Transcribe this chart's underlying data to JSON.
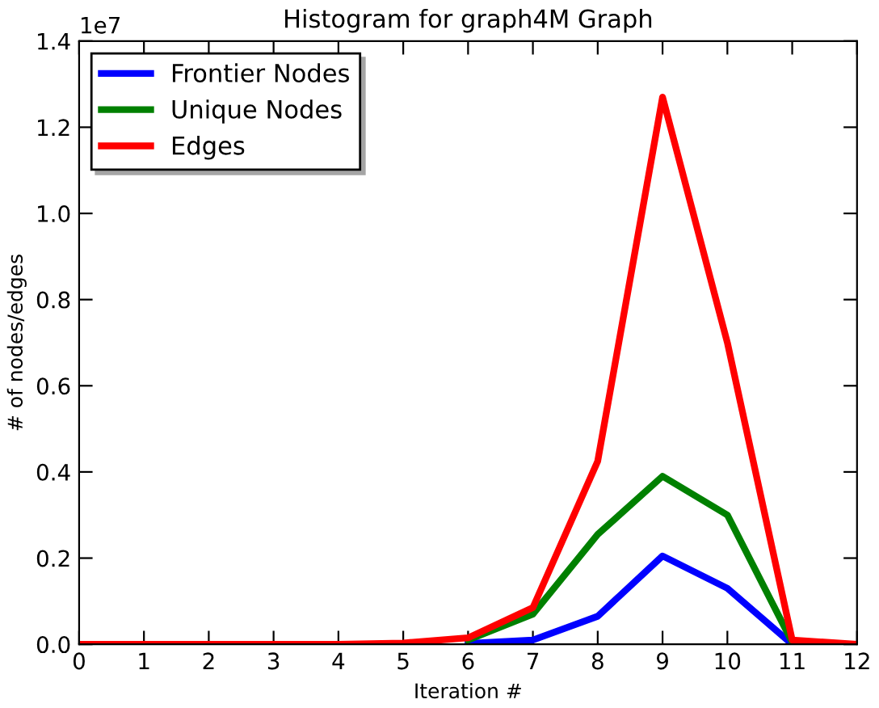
{
  "chart_data": {
    "type": "line",
    "title": "Histogram for graph4M Graph",
    "xlabel": "Iteration #",
    "ylabel": "# of nodes/edges",
    "annotations": [
      "1e7"
    ],
    "x": [
      0,
      1,
      2,
      3,
      4,
      5,
      6,
      7,
      8,
      9,
      10,
      11,
      12
    ],
    "series": [
      {
        "name": "Frontier Nodes",
        "color": "#0000ff",
        "values": [
          null,
          null,
          null,
          null,
          null,
          null,
          0.002,
          0.01,
          0.065,
          0.205,
          0.13,
          0,
          null
        ]
      },
      {
        "name": "Unique Nodes",
        "color": "#008000",
        "values": [
          null,
          null,
          null,
          null,
          null,
          null,
          0.01,
          0.07,
          0.255,
          0.39,
          0.3,
          0.005,
          null
        ]
      },
      {
        "name": "Edges",
        "color": "#ff0000",
        "values": [
          0,
          0,
          0,
          0,
          0,
          0.003,
          0.015,
          0.085,
          0.425,
          1.27,
          0.7,
          0.01,
          0
        ]
      }
    ],
    "xlim": [
      0,
      12
    ],
    "xticks": [
      0,
      1,
      2,
      3,
      4,
      5,
      6,
      7,
      8,
      9,
      10,
      11,
      12
    ],
    "ylim": [
      0.0,
      1.4
    ],
    "yticks": [
      {
        "value": 0,
        "label": "0.0"
      },
      0.2,
      0.4,
      0.6,
      0.8,
      {
        "value": 1,
        "label": "1.0"
      },
      1.2,
      1.4
    ],
    "grid": false,
    "legend": "top left",
    "marker": "none",
    "line_style": "solid"
  }
}
